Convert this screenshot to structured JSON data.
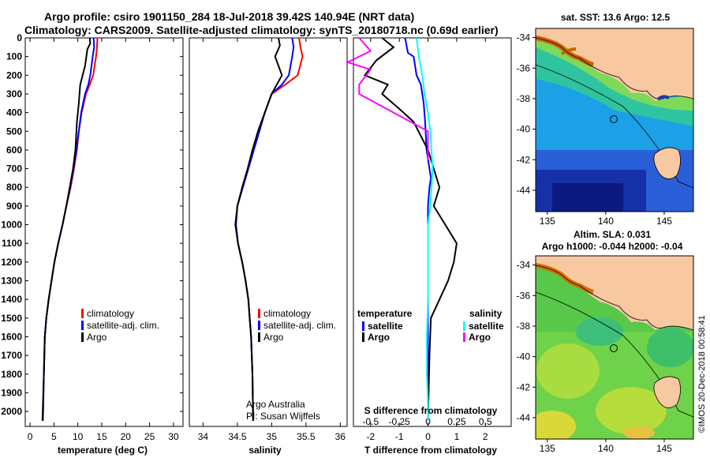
{
  "header": {
    "line1": "Argo profile: csiro 1901150_284 18-Jul-2018 39.42S 140.94E (NRT data)",
    "line2": "Climatology: CARS2009. Satellite-adjusted climatology: synTS_20180718.nc (0.69d earlier)"
  },
  "credit": {
    "line1": "Argo Australia",
    "line2": "PI: Susan Wijffels"
  },
  "watermark": "©IMOS 20-Dec-2018 00:58:41",
  "colors": {
    "climatology": "#ff0000",
    "satellite": "#0000ff",
    "argo": "#000000",
    "satellite_s": "#00ffff",
    "argo_s": "#ff00ff"
  },
  "maps": {
    "sst": {
      "title": "sat. SST: 13.6 Argo: 12.5",
      "float_lon": 140.94,
      "float_lat": -39.42,
      "lat_ticks": [
        "-34",
        "-36",
        "-38",
        "-40",
        "-42",
        "-44"
      ],
      "lon_ticks": [
        "135",
        "140",
        "145"
      ]
    },
    "sla": {
      "title1": "Altim. SLA: 0.031",
      "title2": "Argo h1000: -0.044 h2000: -0.04",
      "float_lon": 140.94,
      "float_lat": -39.42,
      "lat_ticks": [
        "-34",
        "-36",
        "-38",
        "-40",
        "-42",
        "-44"
      ],
      "lon_ticks": [
        "135",
        "140",
        "145"
      ]
    }
  },
  "chart_data": [
    {
      "type": "line",
      "xlabel": "temperature (deg C)",
      "ylabel": "",
      "xlim": [
        -1,
        32
      ],
      "ylim": [
        2080,
        0
      ],
      "x_ticks": [
        "0",
        "5",
        "10",
        "15",
        "20",
        "25",
        "30"
      ],
      "y_ticks": [
        "0",
        "100",
        "200",
        "300",
        "400",
        "500",
        "600",
        "700",
        "800",
        "900",
        "1000",
        "1100",
        "1200",
        "1300",
        "1400",
        "1500",
        "1600",
        "1700",
        "1800",
        "1900",
        "2000"
      ],
      "legend": [
        "climatology",
        "satellite-adj. clim.",
        "Argo"
      ],
      "series": [
        {
          "name": "climatology",
          "color": "#ff0000",
          "x": [
            14.1,
            14.0,
            13.8,
            13.2,
            12.5,
            11.7,
            10.8,
            10.2,
            9.8,
            9.2,
            8.5,
            7.6,
            6.8,
            5.9,
            5.1,
            4.5,
            3.9,
            3.4,
            3.1,
            2.9,
            2.7
          ],
          "y": [
            0,
            50,
            100,
            200,
            250,
            300,
            400,
            500,
            600,
            700,
            800,
            900,
            1000,
            1100,
            1200,
            1300,
            1400,
            1500,
            1600,
            1800,
            2050
          ]
        },
        {
          "name": "satellite-adj. clim.",
          "color": "#0000ff",
          "x": [
            13.3,
            13.4,
            13.1,
            12.6,
            12.2,
            11.5,
            10.7,
            10.2,
            9.7,
            9.1,
            8.4,
            7.6,
            6.8,
            5.9,
            5.1,
            4.5,
            3.9,
            3.4,
            3.1,
            2.9,
            2.7
          ],
          "y": [
            0,
            50,
            100,
            200,
            250,
            300,
            400,
            500,
            600,
            700,
            800,
            900,
            1000,
            1100,
            1200,
            1300,
            1400,
            1500,
            1600,
            1800,
            2050
          ]
        },
        {
          "name": "Argo",
          "color": "#000000",
          "x": [
            12.5,
            12.6,
            12.0,
            11.5,
            10.5,
            10.2,
            9.8,
            9.5,
            9.0,
            8.3,
            7.6,
            6.8,
            5.9,
            5.1,
            4.5,
            3.9,
            3.4,
            3.1,
            2.9,
            2.6
          ],
          "y": [
            0,
            30,
            60,
            150,
            250,
            350,
            450,
            600,
            700,
            800,
            900,
            1000,
            1100,
            1200,
            1300,
            1400,
            1500,
            1600,
            1800,
            2050
          ]
        }
      ]
    },
    {
      "type": "line",
      "xlabel": "salinity",
      "ylabel": "",
      "xlim": [
        33.8,
        36.1
      ],
      "ylim": [
        2080,
        0
      ],
      "x_ticks": [
        "34",
        "34.5",
        "35",
        "35.5",
        "36"
      ],
      "legend": [
        "climatology",
        "satellite-adj. clim.",
        "Argo"
      ],
      "series": [
        {
          "name": "climatology",
          "color": "#ff0000",
          "x": [
            35.4,
            35.42,
            35.45,
            35.38,
            35.2,
            35.0,
            34.9,
            34.82,
            34.74,
            34.66,
            34.58,
            34.5,
            34.48,
            34.51,
            34.57,
            34.62,
            34.66,
            34.68,
            34.7,
            34.72,
            34.73
          ],
          "y": [
            0,
            50,
            100,
            200,
            250,
            300,
            400,
            500,
            600,
            700,
            800,
            900,
            1000,
            1100,
            1200,
            1300,
            1400,
            1500,
            1600,
            1800,
            2050
          ]
        },
        {
          "name": "satellite-adj. clim.",
          "color": "#0000ff",
          "x": [
            35.3,
            35.32,
            35.3,
            35.25,
            35.15,
            35.0,
            34.9,
            34.82,
            34.74,
            34.66,
            34.58,
            34.5,
            34.48,
            34.51,
            34.57,
            34.62,
            34.66,
            34.68,
            34.7,
            34.72,
            34.73
          ],
          "y": [
            0,
            50,
            100,
            200,
            250,
            300,
            400,
            500,
            600,
            700,
            800,
            900,
            1000,
            1100,
            1200,
            1300,
            1400,
            1500,
            1600,
            1800,
            2050
          ]
        },
        {
          "name": "Argo",
          "color": "#000000",
          "x": [
            35.1,
            35.12,
            35.05,
            35.15,
            35.0,
            34.9,
            34.85,
            34.8,
            34.72,
            34.65,
            34.57,
            34.5,
            34.47,
            34.51,
            34.57,
            34.62,
            34.66,
            34.68,
            34.7,
            34.72,
            34.73
          ],
          "y": [
            0,
            40,
            100,
            200,
            300,
            400,
            450,
            500,
            600,
            700,
            800,
            900,
            1000,
            1100,
            1200,
            1300,
            1400,
            1500,
            1600,
            1800,
            2050
          ]
        }
      ]
    },
    {
      "type": "line",
      "xlabel": "T difference from climatology",
      "x2label": "S difference from climatology",
      "ylabel": "",
      "xlim": [
        -2.6,
        2.9
      ],
      "ylim": [
        2080,
        0
      ],
      "x_ticks": [
        "-2",
        "-1",
        "0",
        "1",
        "2"
      ],
      "x2_ticks": [
        "-0.5",
        "-0.25",
        "0",
        "0.25",
        "0.5"
      ],
      "legend_left_title": "temperature",
      "legend_right_title": "salinity",
      "legend": [
        "satellite",
        "Argo",
        "satellite",
        "Argo"
      ],
      "series": [
        {
          "name": "satellite",
          "color": "#0000ff",
          "x": [
            -0.8,
            -0.7,
            -0.5,
            -0.4,
            -0.25,
            -0.15,
            -0.1,
            -0.05,
            0.05,
            0.1,
            0.05,
            0.0,
            0.0,
            0.0,
            0.0,
            0.0,
            0.0,
            0.0,
            0.0
          ],
          "y": [
            0,
            80,
            100,
            200,
            250,
            350,
            450,
            600,
            700,
            750,
            800,
            900,
            1000,
            1100,
            1200,
            1400,
            1600,
            1800,
            2050
          ]
        },
        {
          "name": "Argo",
          "color": "#000000",
          "x": [
            -1.6,
            -1.2,
            -1.8,
            -2.2,
            -1.4,
            -1.6,
            -1.0,
            -0.5,
            0.0,
            0.2,
            0.4,
            0.2,
            0.6,
            1.0,
            0.9,
            0.7,
            0.4,
            0.1,
            0.05,
            0.0
          ],
          "y": [
            0,
            50,
            120,
            200,
            250,
            300,
            380,
            450,
            600,
            700,
            800,
            900,
            1000,
            1100,
            1200,
            1300,
            1400,
            1500,
            1700,
            2050
          ]
        },
        {
          "name": "satellite",
          "color": "#00ffff",
          "x": [
            -0.1,
            -0.08,
            -0.05,
            -0.03,
            0.0,
            0.02,
            0.03,
            0.04,
            0.03,
            0.02,
            0.0,
            0.0,
            0.0,
            0.0,
            -0.01,
            -0.01,
            0.0,
            0.0
          ],
          "y": [
            0,
            100,
            200,
            300,
            400,
            500,
            600,
            700,
            800,
            900,
            1000,
            1100,
            1200,
            1400,
            1600,
            1800,
            1950,
            2050
          ]
        },
        {
          "name": "Argo",
          "color": "#ff00ff",
          "x": [
            -0.6,
            -0.5,
            -0.7,
            -0.5,
            -0.6,
            -0.6,
            -0.3,
            0.0,
            0.0,
            0.0
          ],
          "y": [
            0,
            70,
            130,
            170,
            250,
            300,
            400,
            500,
            600,
            650
          ]
        }
      ]
    }
  ]
}
